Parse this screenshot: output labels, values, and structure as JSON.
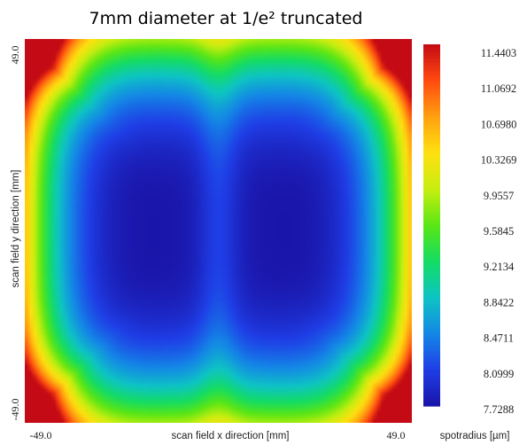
{
  "chart_data": {
    "type": "heatmap",
    "title": "7mm diameter at 1/e² truncated",
    "xlabel": "scan field x direction [mm]",
    "ylabel": "scan field y direction [mm]",
    "colorbar_label": "spotradius [µm]",
    "x_range": [
      -49.0,
      49.0
    ],
    "y_range": [
      -49.0,
      49.0
    ],
    "x_tick_labels": [
      "-49.0",
      "49.0"
    ],
    "y_tick_labels": [
      "-49.0",
      "49.0"
    ],
    "value_range": [
      7.7288,
      11.4403
    ],
    "colorbar_ticks": [
      "11.4403",
      "11.0692",
      "10.6980",
      "10.3269",
      "9.9557",
      "9.5845",
      "9.2134",
      "8.8422",
      "8.4711",
      "8.0999",
      "7.7288"
    ],
    "colormap": [
      "#1a14a8",
      "#1f3ee6",
      "#1487e6",
      "#0ec4c4",
      "#14dc64",
      "#5ae614",
      "#c8ee10",
      "#ffe010",
      "#ffa010",
      "#ff4a10",
      "#c40a14"
    ],
    "minima": [
      {
        "x": -19.6,
        "y": 0.0,
        "value": 7.7288
      },
      {
        "x": 19.6,
        "y": 0.0,
        "value": 7.7288
      }
    ],
    "maximum_corners": [
      {
        "x": -49.0,
        "y": 49.0,
        "value": 11.4403
      },
      {
        "x": 49.0,
        "y": 49.0,
        "value": 11.4403
      },
      {
        "x": -49.0,
        "y": -49.0,
        "value": 11.4403
      },
      {
        "x": 49.0,
        "y": -49.0,
        "value": 11.4403
      }
    ],
    "center_value": 8.05,
    "top_bottom_edge_center_value": 9.85,
    "left_right_edge_center_value": 9.25
  }
}
